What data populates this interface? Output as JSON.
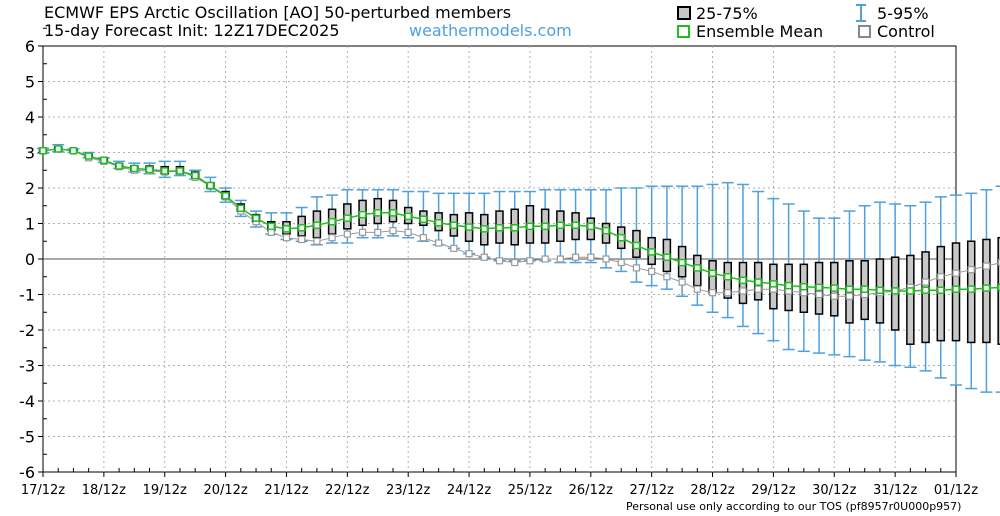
{
  "header": {
    "title_line1": "ECMWF EPS Arctic Oscillation [AO]  50-perturbed members",
    "title_line2": "15-day Forecast Init: 12Z17DEC2025",
    "site": "weathermodels.com"
  },
  "legend": {
    "iqr": "25-75%",
    "whisker": "5-95%",
    "mean": "Ensemble Mean",
    "control": "Control"
  },
  "footer": "Personal use only according to our TOS (pf8957r0U000p957)",
  "colors": {
    "whisker": "#4ea0de",
    "box_fill": "#c8c8c8",
    "mean": "#22bb22",
    "control": "#999999",
    "grid": "#b0b0b0"
  },
  "chart_data": {
    "type": "box",
    "title": "ECMWF EPS Arctic Oscillation [AO]  50-perturbed members",
    "ylim": [
      -6,
      6
    ],
    "yticks": [
      6,
      5,
      4,
      3,
      2,
      1,
      0,
      -1,
      -2,
      -3,
      -4,
      -5,
      -6
    ],
    "xlim": [
      0,
      15
    ],
    "xticks": [
      "17/12z",
      "18/12z",
      "19/12z",
      "20/12z",
      "21/12z",
      "22/12z",
      "23/12z",
      "24/12z",
      "25/12z",
      "26/12z",
      "27/12z",
      "28/12z",
      "29/12z",
      "30/12z",
      "31/12z",
      "01/12z"
    ],
    "grid": true,
    "zero_line": true,
    "step_days": 0.25,
    "series": [
      {
        "name": "5-95%",
        "low": [
          2.98,
          3.02,
          3.0,
          2.85,
          2.72,
          2.55,
          2.45,
          2.4,
          2.3,
          2.35,
          2.25,
          1.9,
          1.6,
          1.2,
          0.9,
          0.7,
          0.55,
          0.5,
          0.4,
          0.45,
          0.45,
          0.6,
          0.6,
          0.65,
          0.6,
          0.5,
          0.4,
          0.3,
          0.15,
          0.05,
          -0.05,
          -0.05,
          -0.05,
          -0.05,
          -0.1,
          -0.1,
          -0.1,
          -0.25,
          -0.35,
          -0.65,
          -0.75,
          -0.85,
          -1.05,
          -1.3,
          -1.5,
          -1.65,
          -1.9,
          -2.1,
          -2.3,
          -2.55,
          -2.6,
          -2.65,
          -2.7,
          -2.75,
          -2.85,
          -2.9,
          -3.0,
          -3.05,
          -3.15,
          -3.35,
          -3.55,
          -3.65,
          -3.75,
          -3.75,
          -3.85,
          -3.85,
          -3.85,
          -3.8,
          -3.8,
          -3.75
        ],
        "high": [
          3.12,
          3.22,
          3.1,
          3.0,
          2.85,
          2.75,
          2.7,
          2.7,
          2.75,
          2.75,
          2.5,
          2.3,
          2.0,
          1.65,
          1.35,
          1.3,
          1.3,
          1.45,
          1.75,
          1.8,
          1.95,
          1.95,
          1.95,
          1.95,
          1.9,
          1.9,
          1.85,
          1.85,
          1.85,
          1.85,
          1.9,
          1.9,
          1.9,
          1.95,
          1.95,
          1.95,
          1.95,
          1.95,
          2.0,
          2.0,
          2.05,
          2.05,
          2.05,
          2.05,
          2.1,
          2.15,
          2.1,
          1.9,
          1.7,
          1.55,
          1.35,
          1.15,
          1.15,
          1.35,
          1.5,
          1.6,
          1.55,
          1.5,
          1.6,
          1.75,
          1.8,
          1.85,
          1.95,
          2.05,
          2.05,
          2.1,
          2.15,
          2.2,
          2.3,
          2.3
        ]
      },
      {
        "name": "25-75%",
        "q1": [
          3.02,
          3.06,
          3.05,
          2.88,
          2.77,
          2.6,
          2.5,
          2.46,
          2.4,
          2.4,
          2.3,
          2.0,
          1.7,
          1.35,
          1.05,
          0.8,
          0.7,
          0.65,
          0.6,
          0.7,
          0.85,
          0.95,
          1.0,
          1.05,
          1.0,
          0.95,
          0.8,
          0.65,
          0.5,
          0.4,
          0.45,
          0.4,
          0.45,
          0.45,
          0.5,
          0.55,
          0.55,
          0.45,
          0.3,
          0.05,
          -0.15,
          -0.35,
          -0.5,
          -0.75,
          -0.95,
          -1.1,
          -1.25,
          -1.15,
          -1.4,
          -1.45,
          -1.5,
          -1.55,
          -1.6,
          -1.8,
          -1.7,
          -1.8,
          -2.0,
          -2.4,
          -2.35,
          -2.3,
          -2.3,
          -2.35,
          -2.35,
          -2.4,
          -2.3,
          -2.35,
          -2.4,
          -2.3,
          -2.6,
          -2.75
        ],
        "q3": [
          3.08,
          3.16,
          3.08,
          2.95,
          2.83,
          2.68,
          2.62,
          2.62,
          2.6,
          2.6,
          2.45,
          2.15,
          1.9,
          1.55,
          1.25,
          1.05,
          1.05,
          1.2,
          1.35,
          1.4,
          1.55,
          1.65,
          1.7,
          1.65,
          1.45,
          1.35,
          1.3,
          1.25,
          1.3,
          1.25,
          1.35,
          1.4,
          1.5,
          1.4,
          1.35,
          1.3,
          1.15,
          1.0,
          0.9,
          0.8,
          0.6,
          0.55,
          0.35,
          0.1,
          -0.05,
          -0.1,
          -0.1,
          -0.1,
          -0.15,
          -0.15,
          -0.15,
          -0.1,
          -0.1,
          -0.05,
          -0.05,
          0.0,
          0.05,
          0.1,
          0.2,
          0.35,
          0.45,
          0.5,
          0.55,
          0.6,
          0.55,
          0.55,
          0.55,
          0.5,
          0.4,
          0.5
        ]
      },
      {
        "name": "Ensemble Mean",
        "values": [
          3.05,
          3.1,
          3.05,
          2.9,
          2.78,
          2.62,
          2.55,
          2.52,
          2.48,
          2.48,
          2.35,
          2.07,
          1.78,
          1.43,
          1.15,
          0.92,
          0.85,
          0.88,
          0.95,
          1.05,
          1.15,
          1.25,
          1.3,
          1.3,
          1.2,
          1.12,
          1.02,
          0.95,
          0.9,
          0.85,
          0.88,
          0.88,
          0.92,
          0.92,
          0.95,
          0.95,
          0.92,
          0.8,
          0.6,
          0.38,
          0.2,
          0.05,
          -0.1,
          -0.25,
          -0.4,
          -0.5,
          -0.6,
          -0.65,
          -0.7,
          -0.75,
          -0.78,
          -0.8,
          -0.82,
          -0.85,
          -0.85,
          -0.88,
          -0.9,
          -0.9,
          -0.88,
          -0.88,
          -0.85,
          -0.85,
          -0.82,
          -0.8,
          -0.8,
          -0.78,
          -0.78,
          -0.75,
          -0.75,
          -0.78
        ]
      },
      {
        "name": "Control",
        "values": [
          3.05,
          3.1,
          3.05,
          2.85,
          2.75,
          2.6,
          2.5,
          2.48,
          2.45,
          2.48,
          2.3,
          2.05,
          1.75,
          1.35,
          1.05,
          0.75,
          0.6,
          0.55,
          0.5,
          0.6,
          0.7,
          0.75,
          0.75,
          0.8,
          0.75,
          0.6,
          0.45,
          0.3,
          0.15,
          0.05,
          -0.05,
          -0.1,
          -0.05,
          0.0,
          0.0,
          0.05,
          0.05,
          0.0,
          -0.1,
          -0.25,
          -0.35,
          -0.5,
          -0.65,
          -0.85,
          -0.95,
          -0.95,
          -0.9,
          -0.85,
          -0.85,
          -0.9,
          -0.95,
          -1.0,
          -1.05,
          -1.05,
          -1.0,
          -0.95,
          -0.9,
          -0.8,
          -0.65,
          -0.5,
          -0.4,
          -0.3,
          -0.2,
          -0.1,
          0.0,
          0.1,
          0.15,
          0.15,
          0.1,
          0.1
        ]
      }
    ]
  }
}
